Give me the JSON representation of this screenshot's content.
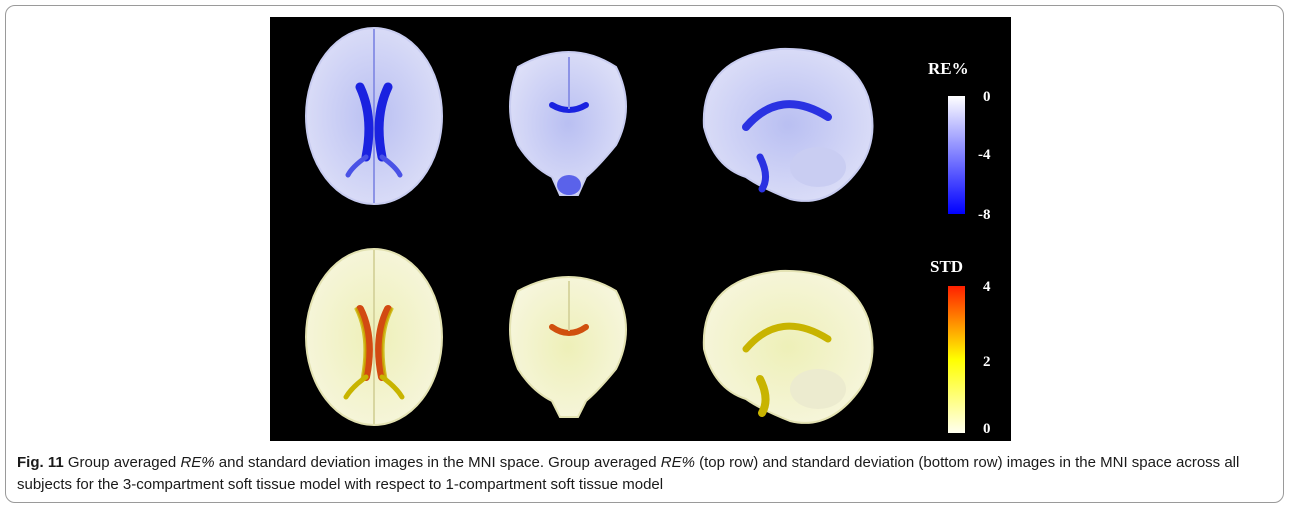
{
  "figure": {
    "label": "Fig. 11",
    "top_scale": {
      "title": "RE%",
      "ticks": [
        "0",
        "-4",
        "-8"
      ],
      "colors": [
        "#ffffff",
        "#0000ff"
      ]
    },
    "bottom_scale": {
      "title": "STD",
      "ticks": [
        "4",
        "2",
        "0"
      ],
      "colors": [
        "#ff2000",
        "#ffff00",
        "#fffff0"
      ]
    },
    "views": [
      "axial",
      "coronal",
      "sagittal"
    ]
  },
  "caption": {
    "s1": "Group averaged ",
    "em1": "RE%",
    "s2": " and standard deviation images in the MNI space. Group averaged ",
    "em2": "RE%",
    "s3": " (top row) and standard deviation (bottom row) images in the MNI space across all subjects for the 3-compartment soft tissue model with respect to 1-compartment soft tissue model"
  }
}
